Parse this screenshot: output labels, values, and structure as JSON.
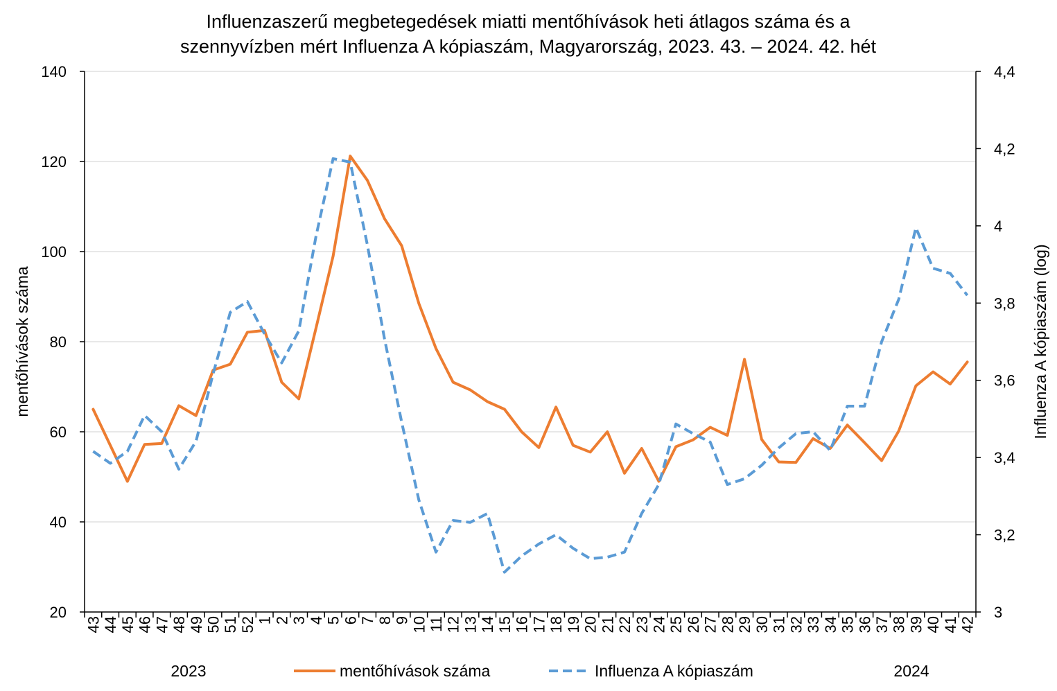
{
  "chart_data": {
    "type": "line",
    "title_lines": [
      "Influenzaszerű megbetegedések miatti mentőhívások heti átlagos száma és a",
      "szennyvízben mért Influenza A kópiaszám, Magyarország, 2023. 43. – 2024. 42. hét"
    ],
    "categories": [
      "43",
      "44",
      "45",
      "46",
      "47",
      "48",
      "49",
      "50",
      "51",
      "52",
      "1",
      "2",
      "3",
      "4",
      "5",
      "6",
      "7",
      "8",
      "9",
      "10",
      "11",
      "12",
      "13",
      "14",
      "15",
      "16",
      "17",
      "18",
      "19",
      "20",
      "21",
      "22",
      "23",
      "24",
      "25",
      "26",
      "27",
      "28",
      "29",
      "30",
      "31",
      "32",
      "33",
      "34",
      "35",
      "36",
      "37",
      "38",
      "39",
      "40",
      "41",
      "42"
    ],
    "year_labels": [
      "2023",
      "2024"
    ],
    "y_left": {
      "label": "mentőhívások száma",
      "min": 20,
      "max": 140,
      "ticks": [
        "20",
        "40",
        "60",
        "80",
        "100",
        "120",
        "140"
      ]
    },
    "y_right": {
      "label": "Influenza A kópiaszám (log)",
      "min": 3,
      "max": 4.4,
      "ticks": [
        "3",
        "3,2",
        "3,4",
        "3,6",
        "3,8",
        "4",
        "4,2",
        "4,4"
      ]
    },
    "grid": true,
    "legend_position": "bottom",
    "series": [
      {
        "name": "mentőhívások száma",
        "axis": "left",
        "color": "#ED7D31",
        "dash": "solid",
        "values": [
          65,
          57,
          49,
          57.2,
          57.4,
          65.8,
          63.6,
          73.7,
          75,
          82.1,
          82.5,
          71,
          67.3,
          83,
          99,
          121.2,
          115.8,
          107.3,
          101.3,
          88.5,
          78.5,
          71,
          69.3,
          66.7,
          65,
          60,
          56.5,
          65.5,
          57,
          55.5,
          60,
          50.8,
          56.3,
          49,
          56.7,
          58.2,
          61,
          59.2,
          76.1,
          58.3,
          53.3,
          53.2,
          58.5,
          56.3,
          61.5,
          57.6,
          53.6,
          60.2,
          70.2,
          73.3,
          70.6,
          75.5
        ]
      },
      {
        "name": "Influenza A kópiaszám",
        "axis": "right",
        "color": "#5B9BD5",
        "dash": "dashed",
        "values": [
          3.416,
          3.385,
          3.416,
          3.509,
          3.467,
          3.37,
          3.442,
          3.617,
          3.776,
          3.804,
          3.72,
          3.645,
          3.728,
          3.973,
          4.174,
          4.165,
          3.95,
          3.707,
          3.492,
          3.29,
          3.155,
          3.237,
          3.232,
          3.255,
          3.103,
          3.145,
          3.176,
          3.2,
          3.165,
          3.138,
          3.142,
          3.155,
          3.255,
          3.33,
          3.487,
          3.462,
          3.44,
          3.33,
          3.345,
          3.38,
          3.425,
          3.462,
          3.467,
          3.418,
          3.533,
          3.533,
          3.7,
          3.81,
          3.995,
          3.89,
          3.877,
          3.82
        ]
      }
    ]
  }
}
